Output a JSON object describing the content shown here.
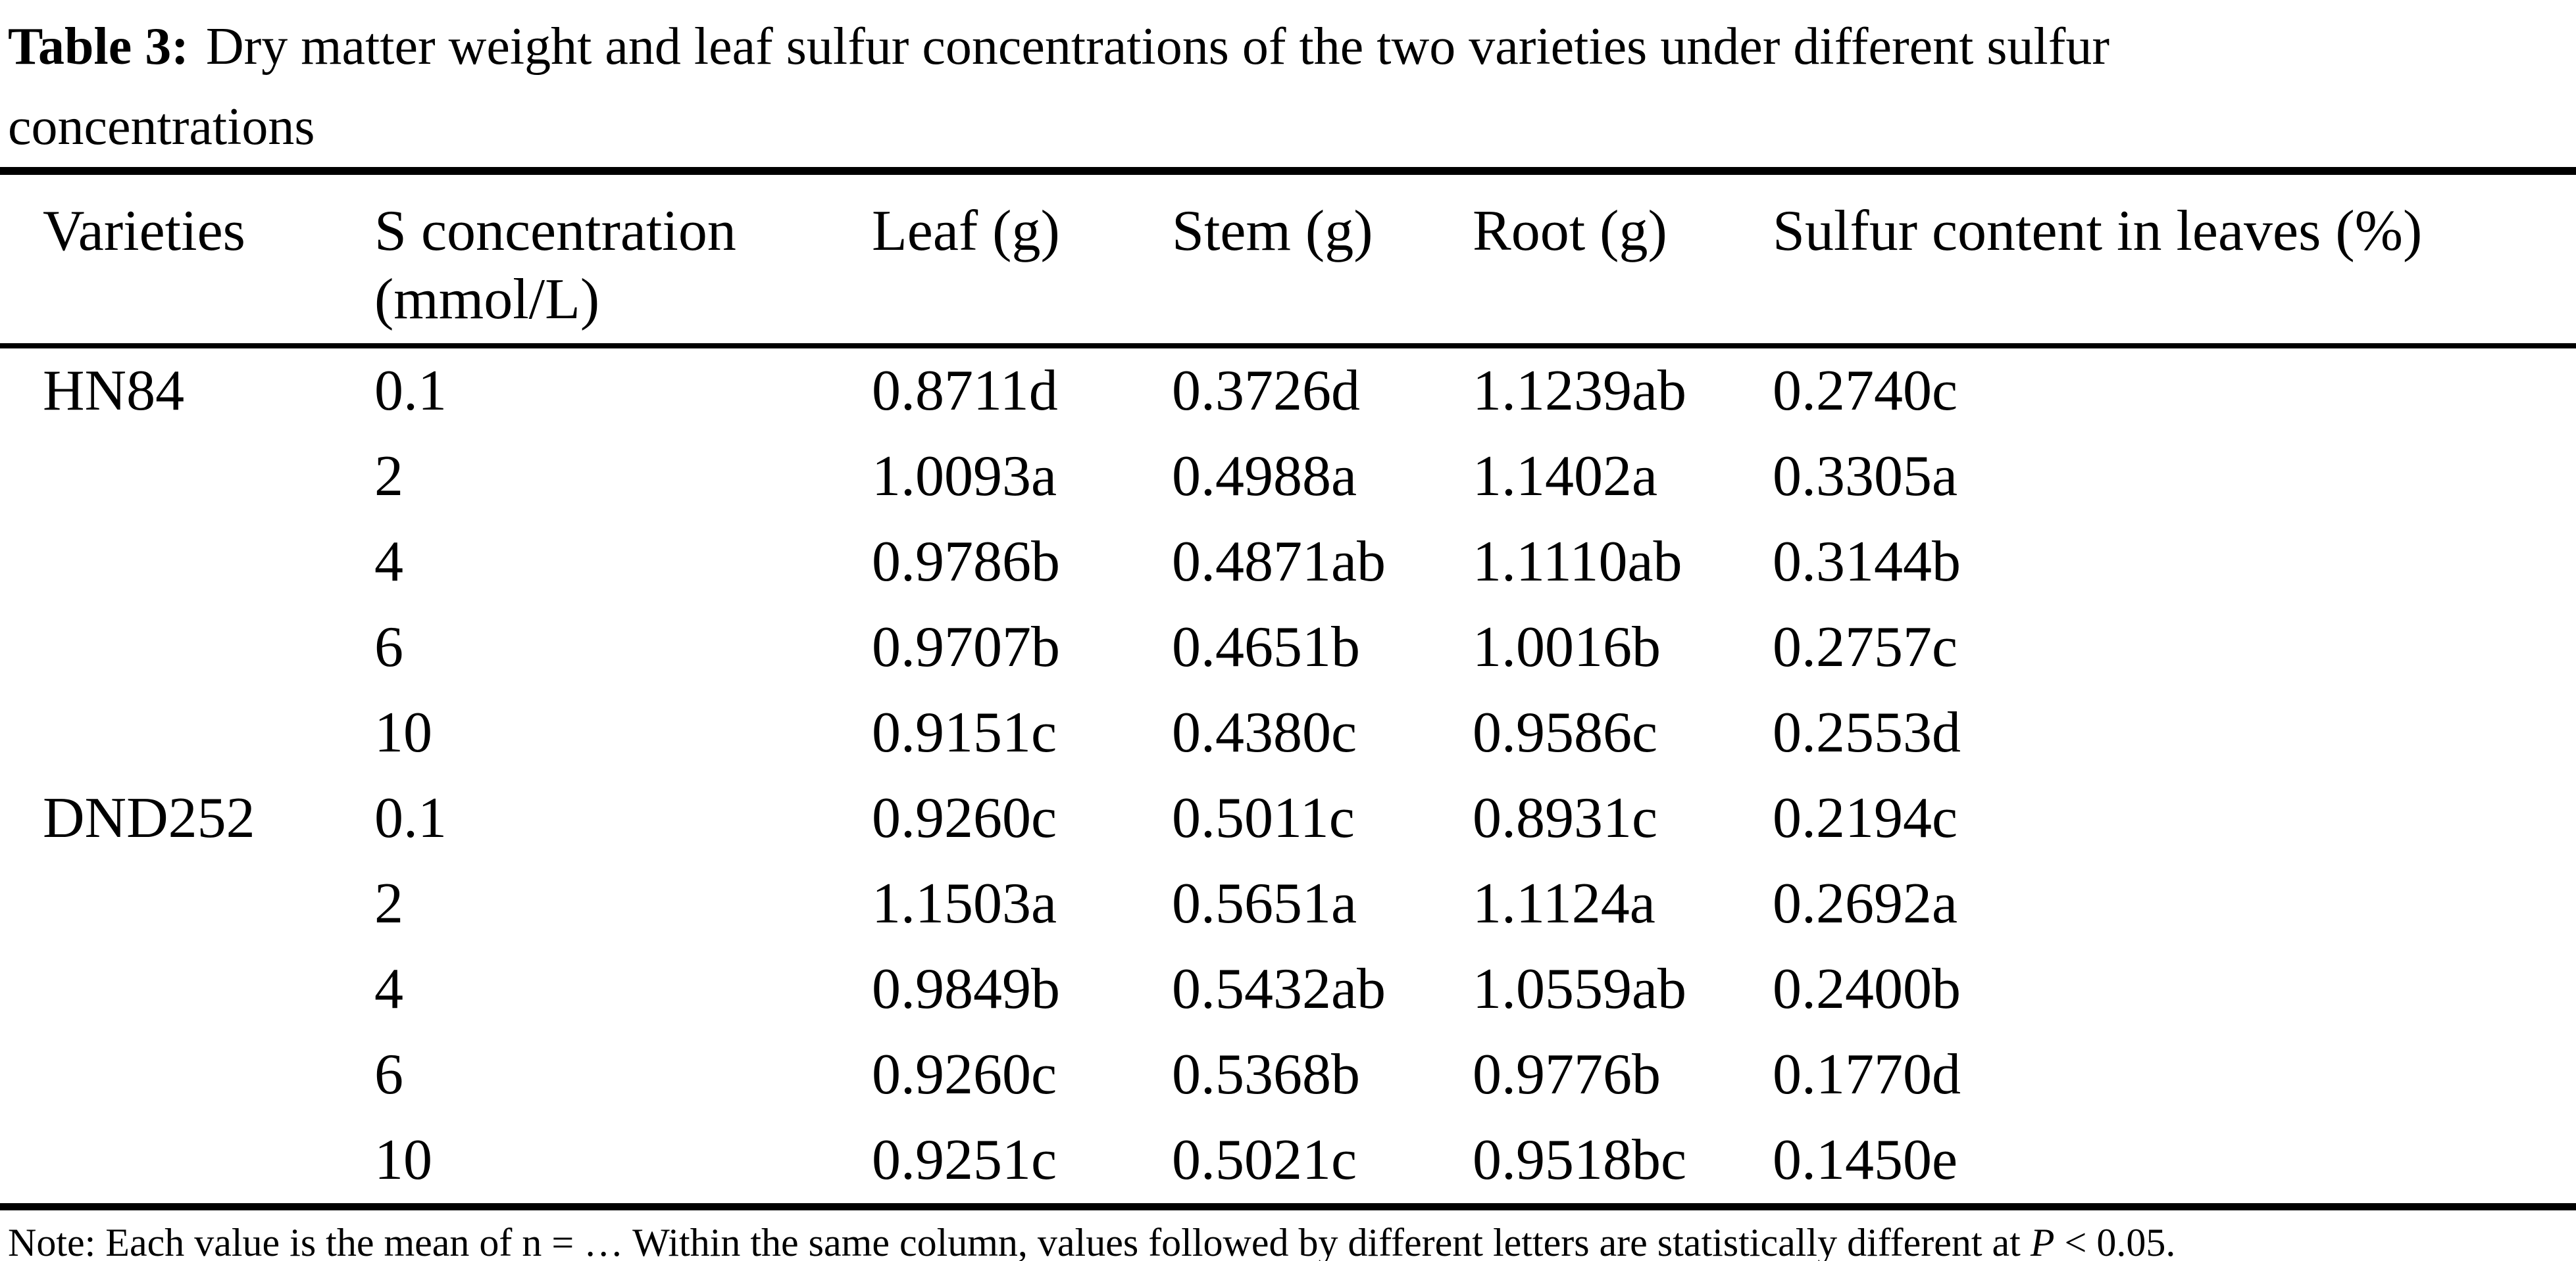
{
  "caption": {
    "bold": "Table 3:",
    "line1": "Dry matter weight and leaf sulfur concentrations of the two varieties under different sulfur",
    "line2": "concentrations"
  },
  "table": {
    "headers": [
      {
        "label": "Varieties",
        "sub": ""
      },
      {
        "label": "S concentration",
        "sub": "(mmol/L)"
      },
      {
        "label": "Leaf (g)",
        "sub": ""
      },
      {
        "label": "Stem (g)",
        "sub": ""
      },
      {
        "label": "Root (g)",
        "sub": ""
      },
      {
        "label": "Sulfur content in leaves (%)",
        "sub": ""
      }
    ],
    "rows": [
      {
        "variety": "HN84",
        "s": "0.1",
        "leaf": "0.8711d",
        "stem": "0.3726d",
        "root": "1.1239ab",
        "sulfur": "0.2740c"
      },
      {
        "variety": "",
        "s": "2",
        "leaf": "1.0093a",
        "stem": "0.4988a",
        "root": "1.1402a",
        "sulfur": "0.3305a"
      },
      {
        "variety": "",
        "s": "4",
        "leaf": "0.9786b",
        "stem": "0.4871ab",
        "root": "1.1110ab",
        "sulfur": "0.3144b"
      },
      {
        "variety": "",
        "s": "6",
        "leaf": "0.9707b",
        "stem": "0.4651b",
        "root": "1.0016b",
        "sulfur": "0.2757c"
      },
      {
        "variety": "",
        "s": "10",
        "leaf": "0.9151c",
        "stem": "0.4380c",
        "root": "0.9586c",
        "sulfur": "0.2553d"
      },
      {
        "variety": "DND252",
        "s": "0.1",
        "leaf": "0.9260c",
        "stem": "0.5011c",
        "root": "0.8931c",
        "sulfur": "0.2194c"
      },
      {
        "variety": "",
        "s": "2",
        "leaf": "1.1503a",
        "stem": "0.5651a",
        "root": "1.1124a",
        "sulfur": "0.2692a"
      },
      {
        "variety": "",
        "s": "4",
        "leaf": "0.9849b",
        "stem": "0.5432ab",
        "root": "1.0559ab",
        "sulfur": "0.2400b"
      },
      {
        "variety": "",
        "s": "6",
        "leaf": "0.9260c",
        "stem": "0.5368b",
        "root": "0.9776b",
        "sulfur": "0.1770d"
      },
      {
        "variety": "",
        "s": "10",
        "leaf": "0.9251c",
        "stem": "0.5021c",
        "root": "0.9518bc",
        "sulfur": "0.1450e"
      }
    ]
  },
  "note": {
    "prefix": "Note: Each value is the mean of n = … Within the same column, values followed by different letters are statistically different at ",
    "p_italic": "P",
    "suffix": " < 0.05."
  },
  "colors": {
    "text": "#000000",
    "background": "#ffffff",
    "rule": "#000000"
  }
}
